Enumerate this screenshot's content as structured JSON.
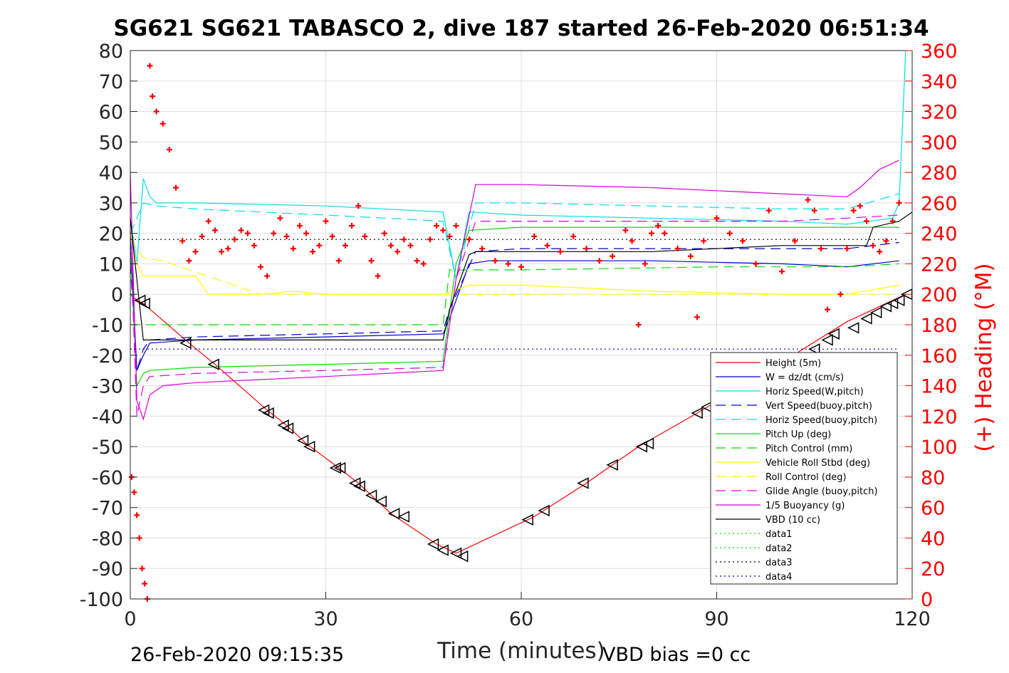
{
  "chart_data": {
    "type": "line",
    "title": "SG621 SG621 TABASCO 2, dive 187 started 26-Feb-2020 06:51:34",
    "xlabel": "Time (minutes)",
    "ylabel_right": "(+) Heading (°M)",
    "xlim": [
      0,
      120
    ],
    "ylim_left": [
      -100,
      80
    ],
    "ylim_right": [
      0,
      360
    ],
    "x_ticks": [
      "0",
      "30",
      "60",
      "90",
      "120"
    ],
    "y_ticks_left": [
      "80",
      "70",
      "60",
      "50",
      "40",
      "30",
      "20",
      "10",
      "0",
      "-10",
      "-20",
      "-30",
      "-40",
      "-50",
      "-60",
      "-70",
      "-80",
      "-90",
      "-100"
    ],
    "y_ticks_right": [
      "360",
      "340",
      "320",
      "300",
      "280",
      "260",
      "240",
      "220",
      "200",
      "180",
      "160",
      "140",
      "120",
      "100",
      "80",
      "60",
      "40",
      "20",
      "0"
    ],
    "grid": true,
    "legend_position": "lower-right",
    "footer_left": "26-Feb-2020 09:15:35",
    "footer_right": "VBD bias =0 cc",
    "series": [
      {
        "name": "Height (5m)",
        "color": "#ff0000",
        "style": "solid",
        "x": [
          0,
          1,
          2,
          9,
          13,
          21,
          24,
          27,
          32,
          35,
          40,
          47,
          50,
          55,
          62,
          70,
          74,
          78,
          87,
          94,
          101,
          110,
          113,
          116,
          119
        ],
        "y": [
          0,
          -2,
          -3,
          -16,
          -23,
          -38,
          -43,
          -49,
          -57,
          -62,
          -72,
          -82,
          -85,
          -80,
          -73,
          -62,
          -56,
          -50,
          -39,
          -30,
          -21,
          -9,
          -6,
          -3,
          0
        ]
      },
      {
        "name": "W = dz/dt (cm/s)",
        "color": "#0000cc",
        "style": "solid",
        "x": [
          0,
          1,
          2,
          3,
          10,
          30,
          48,
          49,
          52,
          55,
          65,
          80,
          100,
          110,
          118
        ],
        "y": [
          20,
          -25,
          -20,
          -16,
          -15,
          -14,
          -13,
          -8,
          10,
          11,
          11,
          11,
          10,
          9,
          11
        ]
      },
      {
        "name": "Horiz Speed(W,pitch)",
        "color": "#00e0e0",
        "style": "solid",
        "x": [
          0,
          1,
          2,
          3,
          4,
          10,
          30,
          48,
          50,
          52,
          60,
          80,
          100,
          110,
          117,
          118,
          119
        ],
        "y": [
          25,
          10,
          38,
          32,
          30,
          30,
          29,
          27,
          5,
          27,
          26,
          25,
          24,
          23,
          25,
          30,
          80
        ]
      },
      {
        "name": "Vert Speed(buoy,pitch)",
        "color": "#0000cc",
        "style": "dashed",
        "x": [
          0,
          1,
          2,
          3,
          10,
          30,
          48,
          49,
          53,
          60,
          80,
          100,
          110,
          118
        ],
        "y": [
          10,
          -25,
          -18,
          -15,
          -14,
          -13,
          -12,
          -5,
          14,
          15,
          15,
          15,
          15,
          17
        ]
      },
      {
        "name": "Horiz Speed(buoy,pitch)",
        "color": "#00e0e0",
        "style": "dashed",
        "x": [
          0,
          2,
          4,
          10,
          30,
          48,
          50,
          53,
          60,
          80,
          100,
          110,
          118
        ],
        "y": [
          20,
          30,
          29,
          28,
          26,
          24,
          5,
          30,
          30,
          29,
          28,
          28,
          33
        ]
      },
      {
        "name": "Pitch Up (deg)",
        "color": "#00dd00",
        "style": "solid",
        "x": [
          0,
          1,
          2,
          3,
          10,
          30,
          48,
          50,
          52,
          60,
          80,
          100,
          110,
          118
        ],
        "y": [
          15,
          -30,
          -26,
          -25,
          -24,
          -23,
          -22,
          10,
          21,
          22,
          22,
          22,
          22,
          22
        ]
      },
      {
        "name": "Pitch Control (mm)",
        "color": "#00dd00",
        "style": "dashed",
        "x": [
          0,
          1,
          48,
          49,
          53,
          60,
          90,
          110,
          118
        ],
        "y": [
          -10,
          -10,
          -10,
          8,
          8,
          8,
          9,
          9,
          10
        ]
      },
      {
        "name": "Vehicle Roll Stbd (deg)",
        "color": "#ffff00",
        "style": "solid",
        "x": [
          0,
          1,
          2,
          10,
          12,
          20,
          25,
          30,
          40,
          48,
          52,
          60,
          80,
          100,
          110,
          118
        ],
        "y": [
          20,
          10,
          6,
          6,
          0,
          0,
          1,
          0,
          0,
          0,
          3,
          3,
          1,
          0,
          0,
          3
        ]
      },
      {
        "name": "Roll Control (deg)",
        "color": "#ffff00",
        "style": "dashed",
        "x": [
          0,
          2,
          5,
          20,
          48,
          52,
          60,
          80,
          100,
          118
        ],
        "y": [
          18,
          12,
          11,
          0,
          0,
          0,
          0,
          0,
          0,
          0
        ]
      },
      {
        "name": "Glide Angle (buoy,pitch)",
        "color": "#dd00dd",
        "style": "dashed",
        "x": [
          0,
          1,
          2,
          3,
          10,
          30,
          48,
          50,
          53,
          60,
          80,
          100,
          110,
          118
        ],
        "y": [
          20,
          -40,
          -30,
          -27,
          -26,
          -25,
          -24,
          5,
          24,
          24,
          24,
          24,
          25,
          26
        ]
      },
      {
        "name": "1/5 Buoyancy (g)",
        "color": "#dd00dd",
        "style": "solid",
        "x": [
          0,
          1,
          2,
          3,
          5,
          10,
          20,
          30,
          48,
          50,
          53,
          60,
          80,
          100,
          110,
          112,
          115,
          118
        ],
        "y": [
          40,
          -35,
          -41,
          -33,
          -30,
          -29,
          -28,
          -27,
          -25,
          5,
          36,
          36,
          35,
          33,
          32,
          35,
          41,
          44
        ]
      },
      {
        "name": "VBD (10 cc)",
        "color": "#000000",
        "style": "solid",
        "x": [
          0,
          2,
          3,
          10,
          30,
          48,
          49,
          52,
          53,
          60,
          80,
          100,
          113,
          114,
          118,
          120
        ],
        "y": [
          25,
          -15,
          -15,
          -15,
          -15,
          -15,
          -5,
          13,
          14,
          14,
          14,
          16,
          16,
          22,
          24,
          27
        ]
      },
      {
        "name": "data1",
        "color": "#00dd00",
        "style": "dotted",
        "x": [],
        "y": []
      },
      {
        "name": "data2",
        "color": "#00dd00",
        "style": "dotted",
        "x": [],
        "y": []
      },
      {
        "name": "data3",
        "color": "#000000",
        "style": "dotted",
        "x": [
          0,
          118
        ],
        "y": [
          18,
          18
        ]
      },
      {
        "name": "data4",
        "color": "#0000cc",
        "style": "dotted",
        "x": [
          0,
          118
        ],
        "y": [
          -18,
          -18
        ]
      }
    ],
    "heading": {
      "color": "#ff0000",
      "marker": "+",
      "axis": "right",
      "x": [
        0.2,
        0.6,
        1.0,
        1.4,
        1.8,
        2.2,
        2.6,
        3.0,
        3.4,
        4.0,
        5.0,
        6.0,
        7.0,
        8.0,
        9.0,
        10.0,
        11.0,
        12.0,
        13.0,
        14.0,
        15.0,
        16.0,
        17.0,
        18.0,
        19.0,
        20.0,
        21.0,
        22.0,
        23.0,
        24.0,
        25.0,
        26.0,
        27.0,
        28.0,
        29.0,
        30.0,
        31.0,
        32.0,
        33.0,
        34.0,
        35.0,
        36.0,
        37.0,
        38.0,
        39.0,
        40.0,
        41.0,
        42.0,
        43.0,
        44.0,
        45.0,
        46.0,
        47.0,
        48.0,
        49.0,
        50.0,
        52.0,
        54.0,
        56.0,
        58.0,
        60.0,
        62.0,
        64.0,
        66.0,
        68.0,
        70.0,
        72.0,
        74.0,
        76.0,
        77.0,
        78.0,
        79.0,
        80.0,
        81.0,
        82.0,
        84.0,
        86.0,
        87.0,
        88.0,
        90.0,
        92.0,
        94.0,
        96.0,
        98.0,
        100.0,
        102.0,
        104.0,
        105.0,
        106.0,
        107.0,
        108.0,
        109.0,
        110.0,
        111.0,
        112.0,
        113.0,
        114.0,
        115.0,
        116.0,
        117.0,
        118.0
      ],
      "y": [
        80,
        70,
        55,
        40,
        20,
        10,
        0,
        350,
        330,
        320,
        312,
        295,
        270,
        235,
        222,
        228,
        238,
        248,
        242,
        228,
        230,
        236,
        242,
        240,
        232,
        218,
        212,
        240,
        250,
        238,
        230,
        245,
        240,
        228,
        232,
        248,
        238,
        222,
        232,
        245,
        258,
        238,
        222,
        212,
        240,
        232,
        228,
        236,
        232,
        222,
        220,
        236,
        245,
        242,
        238,
        245,
        236,
        230,
        222,
        220,
        218,
        238,
        232,
        228,
        238,
        230,
        222,
        225,
        242,
        235,
        180,
        220,
        240,
        245,
        240,
        230,
        225,
        185,
        235,
        250,
        240,
        235,
        220,
        255,
        215,
        235,
        262,
        255,
        230,
        190,
        160,
        200,
        230,
        255,
        258,
        248,
        232,
        228,
        235,
        248,
        260
      ]
    },
    "triangles": {
      "color": "#000000",
      "x": [
        1.5,
        2.2,
        8.5,
        12.8,
        20.5,
        21.2,
        23.5,
        24.2,
        26.5,
        27.5,
        31.5,
        32.2,
        34.5,
        35.2,
        37.0,
        38.5,
        40.5,
        42.0,
        46.5,
        48.0,
        50.0,
        51.0,
        61.0,
        63.5,
        69.5,
        74.0,
        78.5,
        79.5,
        87.0,
        88.5,
        97.5,
        102.0,
        105.0,
        107.0,
        108.0,
        111.0,
        113.0,
        114.5,
        116.0,
        117.0,
        118.0,
        119.2
      ],
      "y": [
        -2,
        -3,
        -16,
        -23,
        -38,
        -39,
        -43,
        -44,
        -48,
        -50,
        -57,
        -57,
        -62,
        -63,
        -66,
        -68,
        -72,
        -73,
        -82,
        -84,
        -85,
        -86,
        -74,
        -71,
        -62,
        -56,
        -50,
        -49,
        -39,
        -37,
        -26,
        -22,
        -18,
        -15,
        -13,
        -11,
        -8,
        -6,
        -4,
        -3,
        -2,
        0
      ]
    }
  }
}
